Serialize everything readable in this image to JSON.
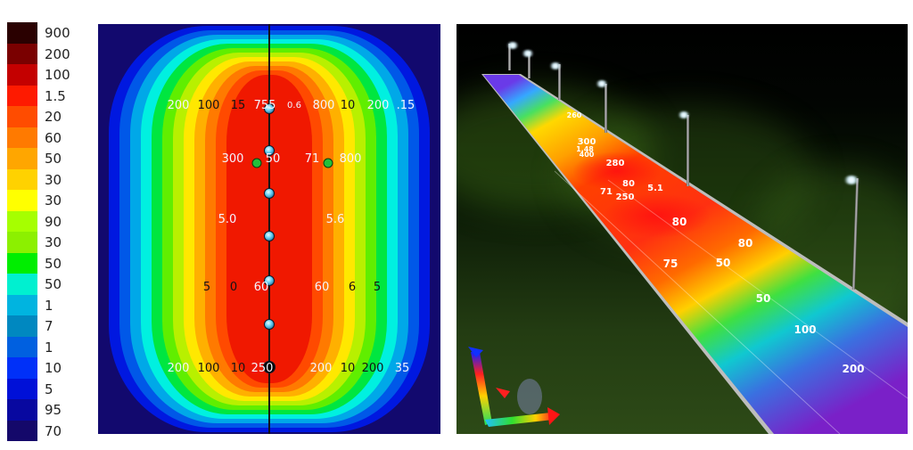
{
  "legend": {
    "items": [
      {
        "label": "900",
        "color": "#2a0000"
      },
      {
        "label": "200",
        "color": "#7a0000"
      },
      {
        "label": "100",
        "color": "#c40000"
      },
      {
        "label": "1.5",
        "color": "#fe1a00"
      },
      {
        "label": "20",
        "color": "#ff4c00"
      },
      {
        "label": "60",
        "color": "#ff7a00"
      },
      {
        "label": "50",
        "color": "#ffa600"
      },
      {
        "label": "30",
        "color": "#ffd200"
      },
      {
        "label": "30",
        "color": "#ffff00"
      },
      {
        "label": "90",
        "color": "#a6ff00"
      },
      {
        "label": "30",
        "color": "#8cf000"
      },
      {
        "label": "50",
        "color": "#00ee00"
      },
      {
        "label": "50",
        "color": "#00f0d0"
      },
      {
        "label": "1",
        "color": "#00b4e0"
      },
      {
        "label": "7",
        "color": "#0088c0"
      },
      {
        "label": "1",
        "color": "#0060e0"
      },
      {
        "label": "10",
        "color": "#0030f8"
      },
      {
        "label": "5",
        "color": "#0010d8"
      },
      {
        "label": "95",
        "color": "#0808a0"
      },
      {
        "label": "70",
        "color": "#14086a"
      }
    ]
  },
  "isoline_map": {
    "background_color": "#12096e",
    "contour_colors": [
      "#0018e0",
      "#0058e8",
      "#00a8e8",
      "#00f0e0",
      "#00e640",
      "#60ee00",
      "#b8f000",
      "#ffe800",
      "#ffb000",
      "#ff7a00",
      "#ff4a00",
      "#f01800"
    ],
    "luminaires_y": [
      95,
      142,
      190,
      238,
      288,
      337,
      385
    ],
    "labels": {
      "row1": [
        "200",
        "100",
        "15",
        "755",
        "0.6",
        "800",
        "10",
        "200",
        ".15"
      ],
      "row2": [
        "300",
        "50",
        "71",
        "800"
      ],
      "row3": [
        "5.0",
        "5.6"
      ],
      "row4": [
        "5",
        "0",
        "60",
        "60",
        "6",
        "5"
      ],
      "row5": [
        "200",
        "100",
        "10",
        "250",
        "200",
        "10",
        "200",
        "35"
      ]
    }
  },
  "render_view": {
    "road_labels": [
      "260",
      "300",
      "1.48",
      "400",
      "280",
      "80",
      "5.1",
      "71",
      "250",
      "80",
      "80",
      "75",
      "50",
      "50",
      "100",
      "200"
    ],
    "axis_gizmo": "xyz-axis"
  }
}
